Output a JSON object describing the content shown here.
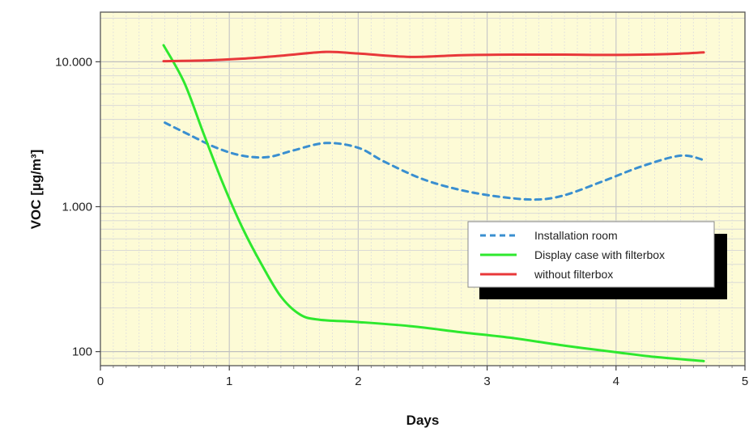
{
  "chart_data": {
    "type": "line",
    "title": "",
    "xlabel": "Days",
    "ylabel": "VOC [µg/m³]",
    "xlim": [
      0,
      5
    ],
    "ylim": [
      80,
      22000
    ],
    "yscale": "log",
    "grid": true,
    "legend_position": "right",
    "x_ticks": [
      {
        "value": 0,
        "label": "0"
      },
      {
        "value": 1,
        "label": "1"
      },
      {
        "value": 2,
        "label": "2"
      },
      {
        "value": 3,
        "label": "3"
      },
      {
        "value": 4,
        "label": "4"
      },
      {
        "value": 5,
        "label": "5"
      }
    ],
    "y_ticks": [
      {
        "value": 100,
        "label": "100"
      },
      {
        "value": 1000,
        "label": "1.000"
      },
      {
        "value": 10000,
        "label": "10.000"
      }
    ],
    "series": [
      {
        "name": "Installation room",
        "color": "#3a8fd0",
        "style": "dashed",
        "points": [
          [
            0.5,
            3800
          ],
          [
            0.7,
            3100
          ],
          [
            0.9,
            2550
          ],
          [
            1.1,
            2250
          ],
          [
            1.3,
            2200
          ],
          [
            1.5,
            2450
          ],
          [
            1.75,
            2750
          ],
          [
            2.0,
            2550
          ],
          [
            2.2,
            2050
          ],
          [
            2.5,
            1550
          ],
          [
            2.8,
            1300
          ],
          [
            3.1,
            1170
          ],
          [
            3.38,
            1120
          ],
          [
            3.6,
            1200
          ],
          [
            3.9,
            1500
          ],
          [
            4.2,
            1900
          ],
          [
            4.5,
            2250
          ],
          [
            4.68,
            2100
          ]
        ]
      },
      {
        "name": "Display case with filterbox",
        "color": "#2ee82e",
        "style": "solid",
        "points": [
          [
            0.49,
            13000
          ],
          [
            0.65,
            7200
          ],
          [
            0.8,
            3200
          ],
          [
            0.95,
            1450
          ],
          [
            1.1,
            720
          ],
          [
            1.25,
            400
          ],
          [
            1.4,
            240
          ],
          [
            1.55,
            180
          ],
          [
            1.7,
            166
          ],
          [
            2.0,
            160
          ],
          [
            2.4,
            150
          ],
          [
            2.8,
            136
          ],
          [
            3.2,
            124
          ],
          [
            3.6,
            110
          ],
          [
            4.0,
            99
          ],
          [
            4.3,
            92
          ],
          [
            4.68,
            86
          ]
        ]
      },
      {
        "name": "without filterbox",
        "color": "#e8383a",
        "style": "solid",
        "points": [
          [
            0.49,
            10100
          ],
          [
            0.8,
            10200
          ],
          [
            1.1,
            10500
          ],
          [
            1.4,
            11000
          ],
          [
            1.75,
            11700
          ],
          [
            2.0,
            11400
          ],
          [
            2.4,
            10800
          ],
          [
            2.8,
            11100
          ],
          [
            3.2,
            11200
          ],
          [
            3.6,
            11200
          ],
          [
            4.0,
            11150
          ],
          [
            4.4,
            11300
          ],
          [
            4.68,
            11600
          ]
        ]
      }
    ]
  }
}
